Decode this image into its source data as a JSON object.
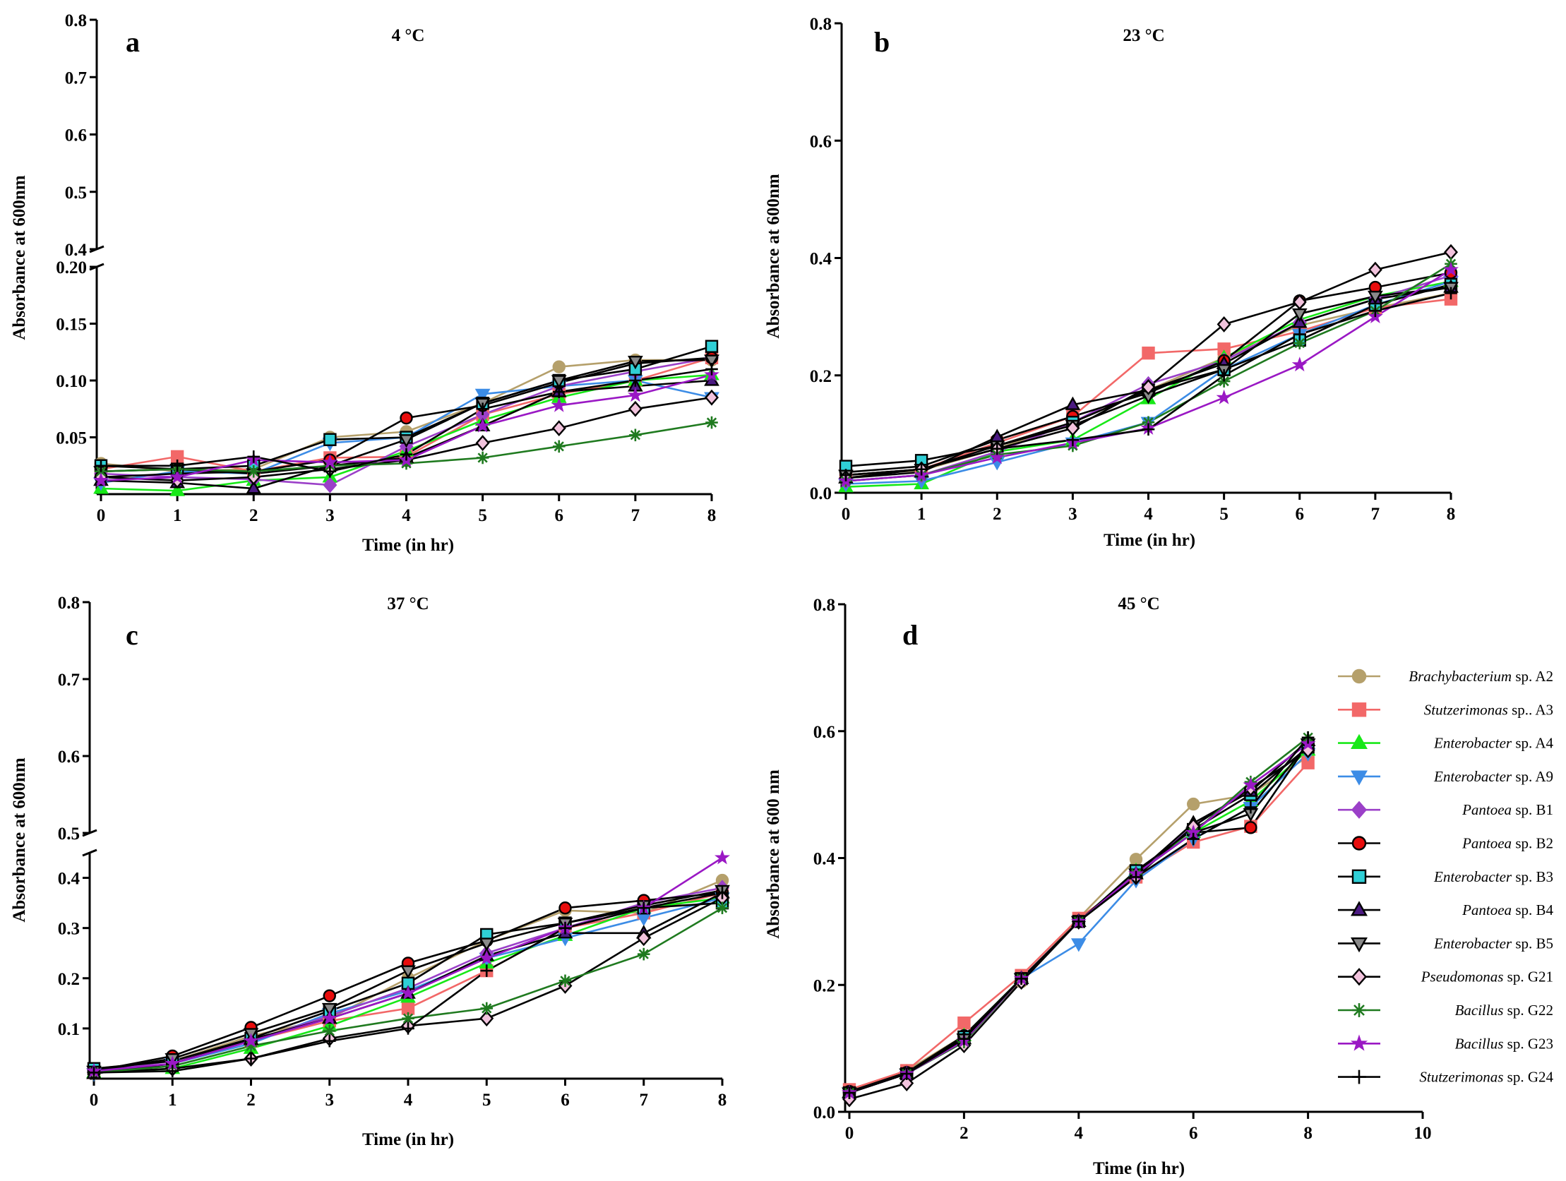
{
  "legend": [
    {
      "genus": "Brachybacterium",
      "rest": " sp. A2",
      "color": "#b5a06b",
      "marker": "circle",
      "stroke": "#b5a06b"
    },
    {
      "genus": "Stutzerimonas",
      "rest": " sp.. A3",
      "color": "#f26868",
      "marker": "square",
      "stroke": "#f26868"
    },
    {
      "genus": "Enterobacter",
      "rest": " sp. A4",
      "color": "#17e817",
      "marker": "triangle",
      "stroke": "#17e817"
    },
    {
      "genus": "Enterobacter",
      "rest": " sp. A9",
      "color": "#3c8ce6",
      "marker": "triangle-down",
      "stroke": "#3c8ce6"
    },
    {
      "genus": "Pantoea",
      "rest": " sp. B1",
      "color": "#9b40c8",
      "marker": "diamond",
      "stroke": "#9b40c8"
    },
    {
      "genus": "Pantoea",
      "rest": " sp. B2",
      "color": "#e80d0d",
      "marker": "circle",
      "stroke": "#000000"
    },
    {
      "genus": "Enterobacter",
      "rest": " sp. B3",
      "color": "#2fcfd6",
      "marker": "square",
      "stroke": "#000000"
    },
    {
      "genus": "Pantoea",
      "rest": " sp. B4",
      "color": "#4b1a82",
      "marker": "triangle",
      "stroke": "#000000"
    },
    {
      "genus": "Enterobacter",
      "rest": " sp. B5",
      "color": "#8a8a8a",
      "marker": "triangle-down",
      "stroke": "#000000"
    },
    {
      "genus": "Pseudomonas",
      "rest": " sp. G21",
      "color": "#f2c3dd",
      "marker": "diamond",
      "stroke": "#000000"
    },
    {
      "genus": "Bacillus",
      "rest": " sp. G22",
      "color": "#1f7a1f",
      "marker": "asterisk",
      "stroke": "#1f7a1f"
    },
    {
      "genus": "Bacillus",
      "rest": " sp. G23",
      "color": "#9a18c4",
      "marker": "star",
      "stroke": "#9a18c4"
    },
    {
      "genus": "Stutzerimonas",
      "rest": " sp. G24",
      "color": "#e3114e",
      "marker": "plus",
      "stroke": "#000000"
    }
  ],
  "chart_data": [
    {
      "type": "line",
      "letter": "a",
      "title": "4 °C",
      "xlabel": "Time (in hr)",
      "ylabel": "Absorbance at 600nm",
      "x": [
        0,
        1,
        2,
        3,
        4,
        5,
        6,
        7,
        8
      ],
      "xlim": [
        0,
        8
      ],
      "xticks": [
        "0",
        "1",
        "2",
        "3",
        "4",
        "5",
        "6",
        "7",
        "8"
      ],
      "y_broken": true,
      "ylim_lower": [
        0,
        0.2
      ],
      "yticks_lower": [
        "0.05",
        "0.10",
        "0.15",
        "0.20"
      ],
      "ylim_upper": [
        0.4,
        0.8
      ],
      "yticks_upper": [
        "0.4",
        "0.5",
        "0.6",
        "0.7",
        "0.8"
      ],
      "series": [
        {
          "values": [
            0.027,
            0.02,
            0.022,
            0.05,
            0.055,
            0.08,
            0.112,
            0.118,
            0.118
          ]
        },
        {
          "values": [
            0.022,
            0.033,
            0.02,
            0.032,
            0.033,
            0.07,
            0.088,
            0.1,
            0.12
          ]
        },
        {
          "values": [
            0.005,
            0.003,
            0.012,
            0.015,
            0.038,
            0.065,
            0.085,
            0.1,
            0.105
          ]
        },
        {
          "values": [
            0.01,
            0.02,
            0.018,
            0.045,
            0.05,
            0.088,
            0.095,
            0.1,
            0.085
          ]
        },
        {
          "values": [
            0.018,
            0.015,
            0.013,
            0.008,
            0.042,
            0.07,
            0.095,
            0.108,
            0.12
          ]
        },
        {
          "values": [
            0.015,
            0.018,
            0.02,
            0.03,
            0.067,
            0.078,
            0.098,
            0.115,
            0.12
          ]
        },
        {
          "values": [
            0.025,
            0.022,
            0.025,
            0.048,
            0.05,
            0.08,
            0.1,
            0.11,
            0.13
          ]
        },
        {
          "values": [
            0.012,
            0.01,
            0.005,
            0.025,
            0.032,
            0.06,
            0.09,
            0.095,
            0.1
          ]
        },
        {
          "values": [
            0.02,
            0.022,
            0.018,
            0.025,
            0.048,
            0.08,
            0.1,
            0.117,
            0.118
          ]
        },
        {
          "values": [
            0.015,
            0.012,
            0.015,
            0.022,
            0.03,
            0.045,
            0.058,
            0.075,
            0.085
          ]
        },
        {
          "values": [
            0.02,
            0.022,
            0.02,
            0.025,
            0.027,
            0.032,
            0.042,
            0.052,
            0.063
          ]
        },
        {
          "values": [
            0.012,
            0.015,
            0.03,
            0.028,
            0.03,
            0.06,
            0.078,
            0.087,
            0.105
          ]
        },
        {
          "values": [
            0.025,
            0.025,
            0.033,
            0.02,
            0.035,
            0.075,
            0.09,
            0.1,
            0.11
          ]
        }
      ]
    },
    {
      "type": "line",
      "letter": "b",
      "title": "23 °C",
      "xlabel": "Time (in hr)",
      "ylabel": "Absorbance at 600nm",
      "x": [
        0,
        1,
        2,
        3,
        4,
        5,
        6,
        7,
        8
      ],
      "xlim": [
        0,
        8
      ],
      "xticks": [
        "0",
        "1",
        "2",
        "3",
        "4",
        "5",
        "6",
        "7",
        "8"
      ],
      "ylim": [
        0,
        0.8
      ],
      "yticks": [
        "0.0",
        "0.2",
        "0.4",
        "0.6",
        "0.8"
      ],
      "series": [
        {
          "values": [
            0.03,
            0.038,
            0.075,
            0.12,
            0.175,
            0.23,
            0.285,
            0.315,
            0.34
          ]
        },
        {
          "values": [
            0.03,
            0.04,
            0.085,
            0.13,
            0.238,
            0.245,
            0.275,
            0.315,
            0.33
          ]
        },
        {
          "values": [
            0.01,
            0.015,
            0.07,
            0.09,
            0.16,
            0.23,
            0.295,
            0.335,
            0.36
          ]
        },
        {
          "values": [
            0.015,
            0.02,
            0.052,
            0.085,
            0.12,
            0.21,
            0.27,
            0.32,
            0.36
          ]
        },
        {
          "values": [
            0.02,
            0.03,
            0.07,
            0.12,
            0.185,
            0.225,
            0.29,
            0.33,
            0.37
          ]
        },
        {
          "values": [
            0.035,
            0.045,
            0.09,
            0.13,
            0.17,
            0.225,
            0.327,
            0.35,
            0.375
          ]
        },
        {
          "values": [
            0.045,
            0.055,
            0.08,
            0.12,
            0.175,
            0.21,
            0.26,
            0.32,
            0.355
          ]
        },
        {
          "values": [
            0.025,
            0.035,
            0.095,
            0.15,
            0.175,
            0.22,
            0.29,
            0.33,
            0.35
          ]
        },
        {
          "values": [
            0.03,
            0.04,
            0.08,
            0.115,
            0.165,
            0.21,
            0.305,
            0.335,
            0.35
          ]
        },
        {
          "values": [
            0.025,
            0.04,
            0.075,
            0.11,
            0.18,
            0.287,
            0.325,
            0.38,
            0.41
          ]
        },
        {
          "values": [
            0.02,
            0.03,
            0.065,
            0.08,
            0.12,
            0.19,
            0.255,
            0.31,
            0.39
          ]
        },
        {
          "values": [
            0.02,
            0.03,
            0.06,
            0.085,
            0.11,
            0.162,
            0.218,
            0.3,
            0.38
          ]
        },
        {
          "values": [
            0.03,
            0.04,
            0.075,
            0.09,
            0.108,
            0.2,
            0.27,
            0.31,
            0.34
          ]
        }
      ]
    },
    {
      "type": "line",
      "letter": "c",
      "title": "37 °C",
      "xlabel": "Time (in hr)",
      "ylabel": "Absorbance at 600nm",
      "x": [
        0,
        1,
        2,
        3,
        4,
        5,
        6,
        7,
        8
      ],
      "xlim": [
        0,
        8
      ],
      "xticks": [
        "0",
        "1",
        "2",
        "3",
        "4",
        "5",
        "6",
        "7",
        "8"
      ],
      "y_broken": true,
      "ylim_lower": [
        0,
        0.45
      ],
      "yticks_lower": [
        "0.1",
        "0.2",
        "0.3",
        "0.4"
      ],
      "ylim_upper": [
        0.5,
        0.8
      ],
      "yticks_upper": [
        "0.5",
        "0.6",
        "0.7",
        "0.8"
      ],
      "series": [
        {
          "values": [
            0.02,
            0.035,
            0.085,
            0.12,
            0.2,
            0.275,
            0.335,
            0.33,
            0.395
          ]
        },
        {
          "values": [
            0.012,
            0.03,
            0.075,
            0.115,
            0.14,
            0.215,
            0.3,
            0.33,
            0.37
          ]
        },
        {
          "values": [
            0.012,
            0.02,
            0.06,
            0.105,
            0.162,
            0.23,
            0.285,
            0.34,
            0.36
          ]
        },
        {
          "values": [
            0.01,
            0.03,
            0.07,
            0.13,
            0.175,
            0.24,
            0.28,
            0.32,
            0.36
          ]
        },
        {
          "values": [
            0.015,
            0.035,
            0.075,
            0.125,
            0.18,
            0.25,
            0.3,
            0.35,
            0.38
          ]
        },
        {
          "values": [
            0.015,
            0.045,
            0.102,
            0.165,
            0.23,
            0.275,
            0.34,
            0.355,
            0.37
          ]
        },
        {
          "values": [
            0.02,
            0.035,
            0.08,
            0.135,
            0.19,
            0.287,
            0.31,
            0.34,
            0.35
          ]
        },
        {
          "values": [
            0.01,
            0.03,
            0.078,
            0.12,
            0.17,
            0.245,
            0.29,
            0.29,
            0.37
          ]
        },
        {
          "values": [
            0.015,
            0.04,
            0.09,
            0.14,
            0.215,
            0.27,
            0.31,
            0.345,
            0.375
          ]
        },
        {
          "values": [
            0.012,
            0.02,
            0.04,
            0.08,
            0.105,
            0.12,
            0.185,
            0.28,
            0.36
          ]
        },
        {
          "values": [
            0.012,
            0.025,
            0.065,
            0.095,
            0.12,
            0.14,
            0.195,
            0.248,
            0.34
          ]
        },
        {
          "values": [
            0.015,
            0.03,
            0.075,
            0.12,
            0.17,
            0.24,
            0.3,
            0.34,
            0.44
          ]
        },
        {
          "values": [
            0.012,
            0.015,
            0.04,
            0.075,
            0.1,
            0.215,
            0.3,
            0.34,
            0.37
          ]
        }
      ]
    },
    {
      "type": "line",
      "letter": "d",
      "title": "45 °C",
      "xlabel": "Time (in hr)",
      "ylabel": "Absorbance at 600 nm",
      "x": [
        0,
        1,
        2,
        3,
        4,
        5,
        6,
        7,
        8
      ],
      "xlim": [
        0,
        10
      ],
      "xticks": [
        "0",
        "2",
        "4",
        "6",
        "8",
        "10"
      ],
      "ylim": [
        0,
        0.8
      ],
      "yticks": [
        "0.0",
        "0.2",
        "0.4",
        "0.6",
        "0.8"
      ],
      "series": [
        {
          "values": [
            0.03,
            0.065,
            0.12,
            0.205,
            0.305,
            0.398,
            0.485,
            0.5,
            0.56
          ]
        },
        {
          "values": [
            0.035,
            0.065,
            0.14,
            0.215,
            0.305,
            0.37,
            0.425,
            0.45,
            0.55
          ]
        },
        {
          "values": [
            0.03,
            0.06,
            0.12,
            0.21,
            0.3,
            0.38,
            0.44,
            0.49,
            0.57
          ]
        },
        {
          "values": [
            0.03,
            0.06,
            0.115,
            0.21,
            0.265,
            0.365,
            0.43,
            0.48,
            0.565
          ]
        },
        {
          "values": [
            0.03,
            0.06,
            0.11,
            0.21,
            0.3,
            0.375,
            0.45,
            0.51,
            0.57
          ]
        },
        {
          "values": [
            0.032,
            0.062,
            0.12,
            0.21,
            0.3,
            0.375,
            0.44,
            0.448,
            0.58
          ]
        },
        {
          "values": [
            0.03,
            0.06,
            0.118,
            0.21,
            0.3,
            0.38,
            0.445,
            0.5,
            0.575
          ]
        },
        {
          "values": [
            0.03,
            0.06,
            0.115,
            0.21,
            0.3,
            0.375,
            0.455,
            0.505,
            0.585
          ]
        },
        {
          "values": [
            0.03,
            0.06,
            0.115,
            0.21,
            0.3,
            0.375,
            0.44,
            0.47,
            0.58
          ]
        },
        {
          "values": [
            0.02,
            0.045,
            0.105,
            0.205,
            0.3,
            0.37,
            0.45,
            0.51,
            0.57
          ]
        },
        {
          "values": [
            0.03,
            0.06,
            0.11,
            0.21,
            0.3,
            0.375,
            0.44,
            0.52,
            0.59
          ]
        },
        {
          "values": [
            0.03,
            0.06,
            0.112,
            0.21,
            0.3,
            0.375,
            0.44,
            0.515,
            0.58
          ]
        },
        {
          "values": [
            0.03,
            0.06,
            0.115,
            0.21,
            0.3,
            0.37,
            0.43,
            0.48,
            0.59
          ]
        }
      ]
    }
  ]
}
